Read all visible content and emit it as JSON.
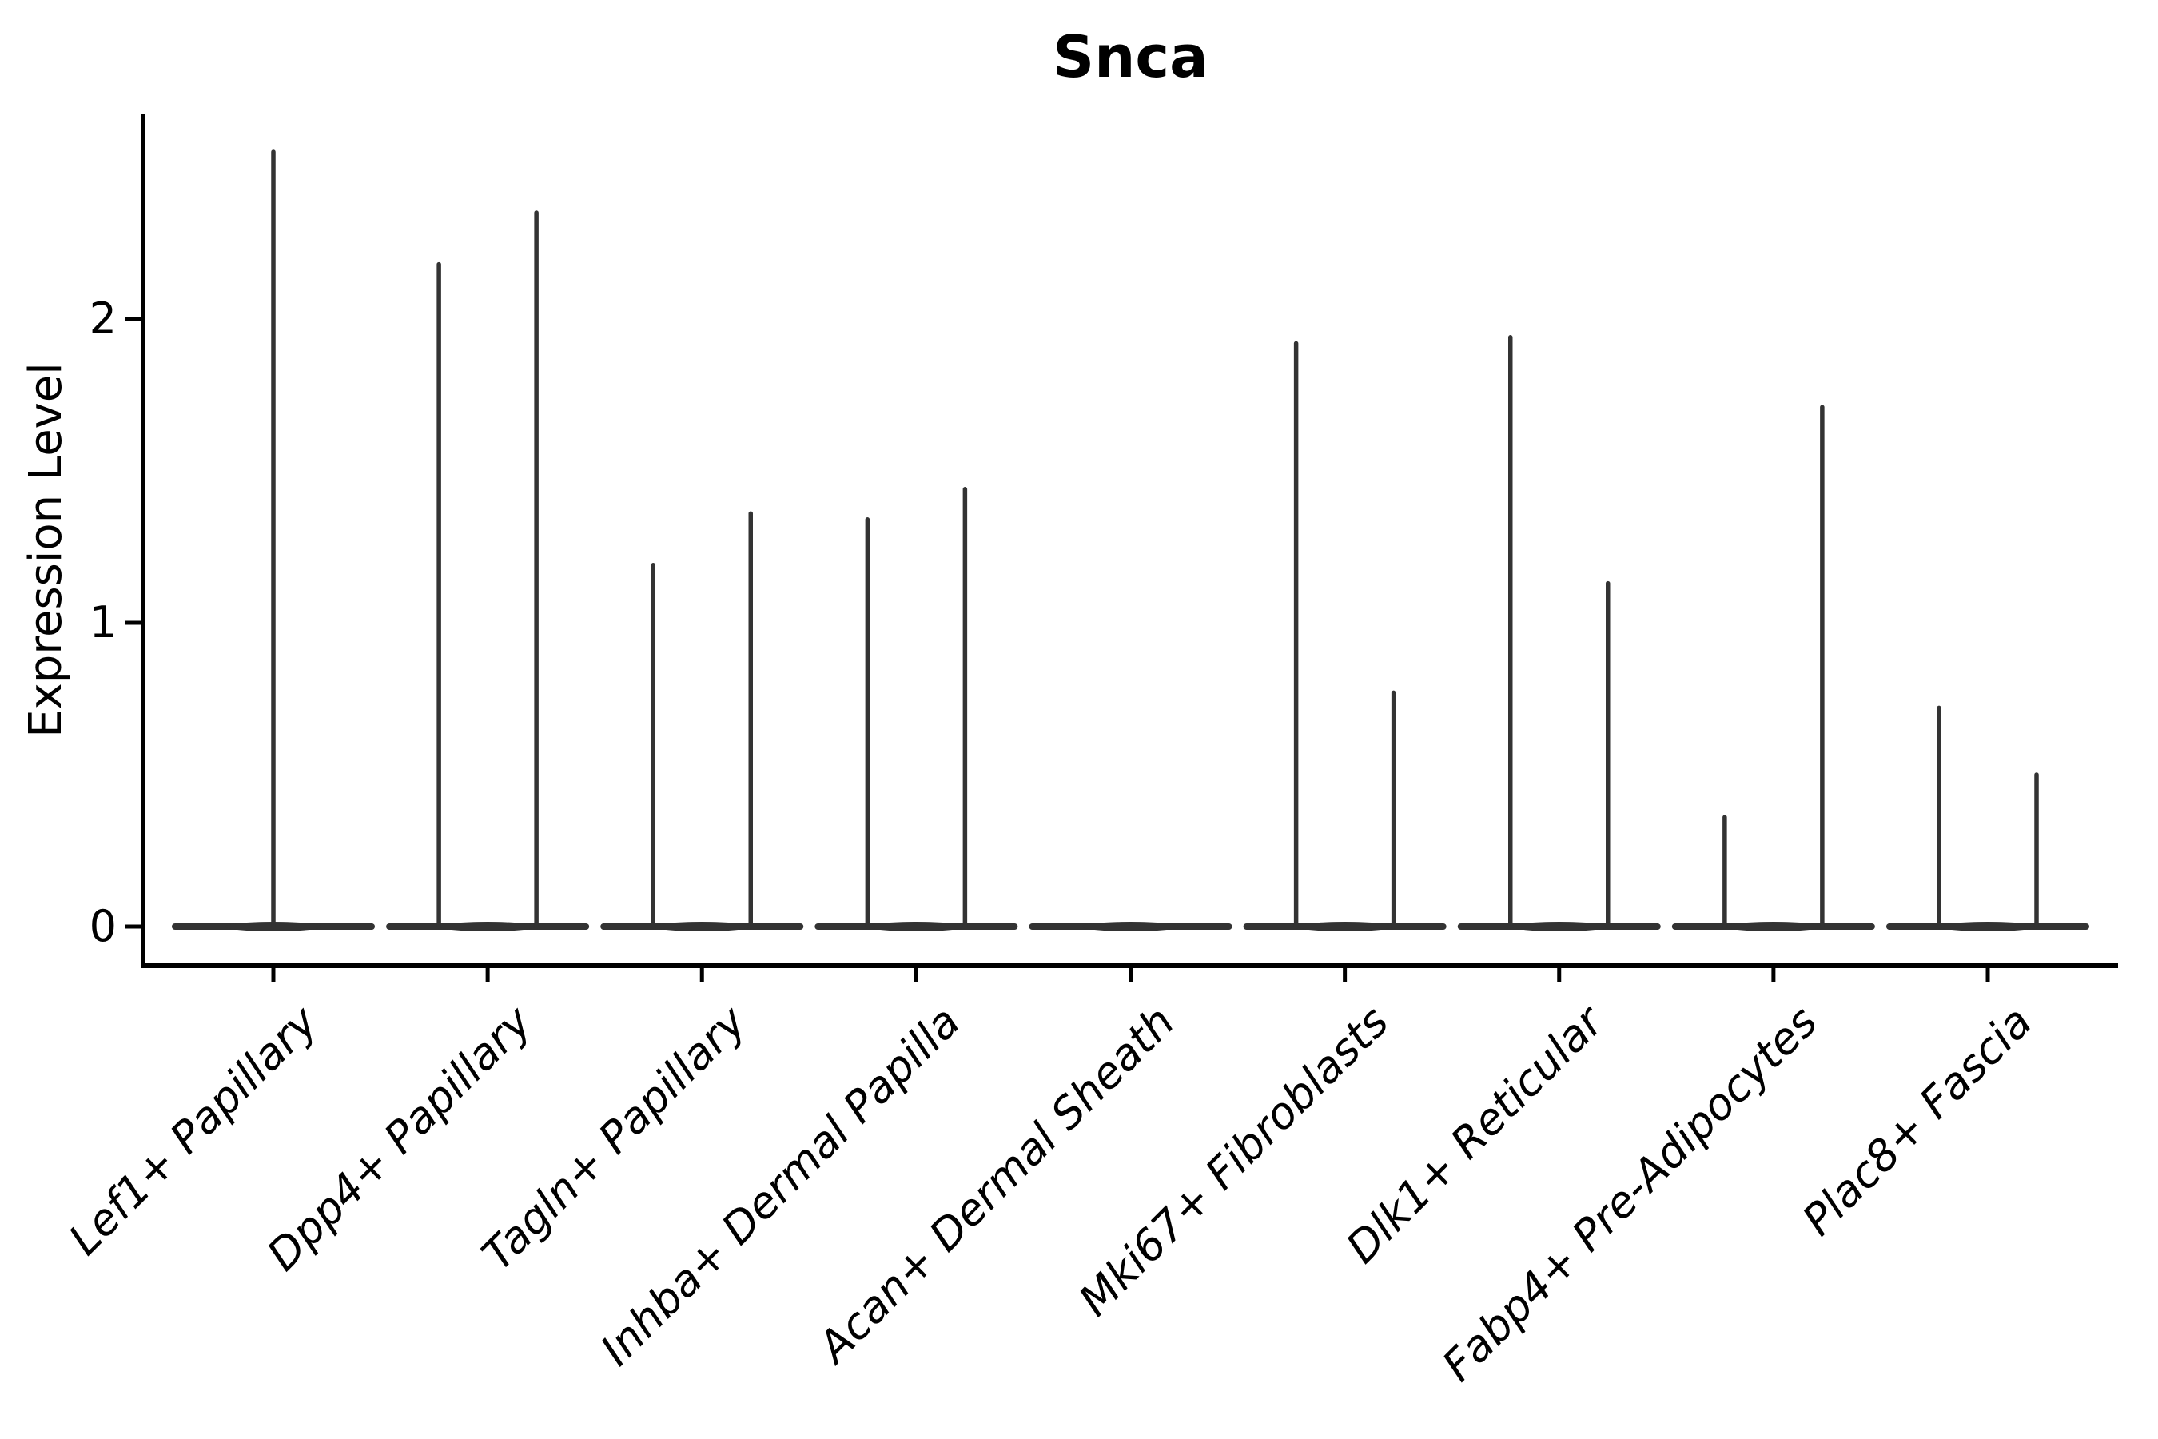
{
  "chart_data": {
    "type": "violin",
    "title": "Snca",
    "ylabel": "Expression Level",
    "xlabel": "",
    "yticks": [
      0,
      1,
      2
    ],
    "ylim": [
      -0.13,
      2.68
    ],
    "grid": false,
    "legend": null,
    "baseline_mass_at": 0,
    "description": "Violin plot of Snca expression per fibroblast cluster; each cluster shows a flat dense violin at 0 with thin spikes reaching the maximum expression of rare expressing cells.",
    "categories": [
      {
        "label": "Lef1+ Papillary",
        "spikes": [
          {
            "slot": 0,
            "value": 2.55
          }
        ]
      },
      {
        "label": "Dpp4+ Papillary",
        "spikes": [
          {
            "slot": -1,
            "value": 2.18
          },
          {
            "slot": 1,
            "value": 2.35
          }
        ]
      },
      {
        "label": "Tagln+ Papillary",
        "spikes": [
          {
            "slot": -1,
            "value": 1.19
          },
          {
            "slot": 1,
            "value": 1.36
          }
        ]
      },
      {
        "label": "Inhba+ Dermal Papilla",
        "spikes": [
          {
            "slot": -1,
            "value": 1.34
          },
          {
            "slot": 1,
            "value": 1.44
          }
        ]
      },
      {
        "label": "Acan+ Dermal Sheath",
        "spikes": []
      },
      {
        "label": "Mki67+ Fibroblasts",
        "spikes": [
          {
            "slot": -1,
            "value": 1.92
          },
          {
            "slot": 1,
            "value": 0.77
          }
        ]
      },
      {
        "label": "Dlk1+ Reticular",
        "spikes": [
          {
            "slot": -1,
            "value": 1.94
          },
          {
            "slot": 1,
            "value": 1.13
          }
        ]
      },
      {
        "label": "Fabp4+ Pre-Adipocytes",
        "spikes": [
          {
            "slot": -1,
            "value": 0.36
          },
          {
            "slot": 1,
            "value": 1.71
          }
        ]
      },
      {
        "label": "Plac8+ Fascia",
        "spikes": [
          {
            "slot": -1,
            "value": 0.72
          },
          {
            "slot": 1,
            "value": 0.5
          }
        ]
      }
    ]
  },
  "colors": {
    "violin": "#333333",
    "axis": "#000000",
    "text": "#000000",
    "background": "#ffffff"
  }
}
